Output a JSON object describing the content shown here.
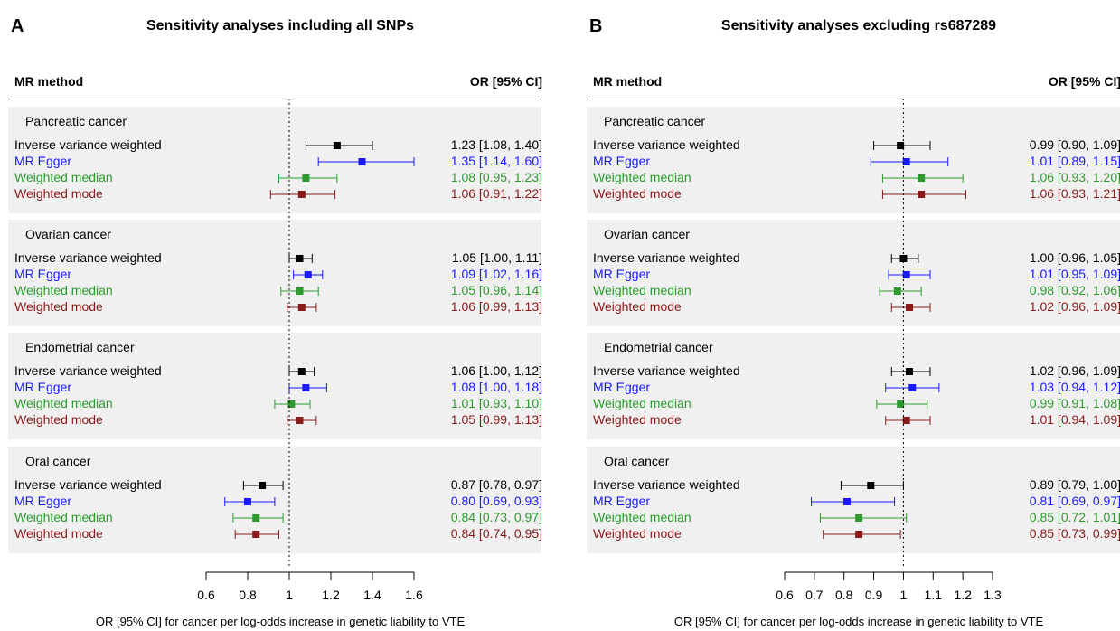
{
  "chart_data": [
    {
      "type": "forest",
      "panel_letter": "A",
      "title": "Sensitivity analyses including all SNPs",
      "header_method": "MR method",
      "header_or": "OR [95% CI]",
      "xlabel": "OR [95% CI] for cancer per log-odds increase in genetic liability to VTE",
      "xticks": [
        "0.6",
        "0.8",
        "1",
        "1.2",
        "1.4",
        "1.6"
      ],
      "xtick_values": [
        0.6,
        0.8,
        1.0,
        1.2,
        1.4,
        1.6
      ],
      "xlim": [
        0.6,
        1.6
      ],
      "reference_line": 1.0,
      "groups": [
        {
          "name": "Pancreatic cancer",
          "rows": [
            {
              "method": "Inverse variance weighted",
              "or": 1.23,
              "lo": 1.08,
              "hi": 1.4,
              "label": "1.23 [1.08, 1.40]"
            },
            {
              "method": "MR Egger",
              "or": 1.35,
              "lo": 1.14,
              "hi": 1.6,
              "label": "1.35 [1.14, 1.60]"
            },
            {
              "method": "Weighted median",
              "or": 1.08,
              "lo": 0.95,
              "hi": 1.23,
              "label": "1.08 [0.95, 1.23]"
            },
            {
              "method": "Weighted mode",
              "or": 1.06,
              "lo": 0.91,
              "hi": 1.22,
              "label": "1.06 [0.91, 1.22]"
            }
          ]
        },
        {
          "name": "Ovarian cancer",
          "rows": [
            {
              "method": "Inverse variance weighted",
              "or": 1.05,
              "lo": 1.0,
              "hi": 1.11,
              "label": "1.05 [1.00, 1.11]"
            },
            {
              "method": "MR Egger",
              "or": 1.09,
              "lo": 1.02,
              "hi": 1.16,
              "label": "1.09 [1.02, 1.16]"
            },
            {
              "method": "Weighted median",
              "or": 1.05,
              "lo": 0.96,
              "hi": 1.14,
              "label": "1.05 [0.96, 1.14]"
            },
            {
              "method": "Weighted mode",
              "or": 1.06,
              "lo": 0.99,
              "hi": 1.13,
              "label": "1.06 [0.99, 1.13]"
            }
          ]
        },
        {
          "name": "Endometrial cancer",
          "rows": [
            {
              "method": "Inverse variance weighted",
              "or": 1.06,
              "lo": 1.0,
              "hi": 1.12,
              "label": "1.06 [1.00, 1.12]"
            },
            {
              "method": "MR Egger",
              "or": 1.08,
              "lo": 1.0,
              "hi": 1.18,
              "label": "1.08 [1.00, 1.18]"
            },
            {
              "method": "Weighted median",
              "or": 1.01,
              "lo": 0.93,
              "hi": 1.1,
              "label": "1.01 [0.93, 1.10]"
            },
            {
              "method": "Weighted mode",
              "or": 1.05,
              "lo": 0.99,
              "hi": 1.13,
              "label": "1.05 [0.99, 1.13]"
            }
          ]
        },
        {
          "name": "Oral cancer",
          "rows": [
            {
              "method": "Inverse variance weighted",
              "or": 0.87,
              "lo": 0.78,
              "hi": 0.97,
              "label": "0.87 [0.78, 0.97]"
            },
            {
              "method": "MR Egger",
              "or": 0.8,
              "lo": 0.69,
              "hi": 0.93,
              "label": "0.80 [0.69, 0.93]"
            },
            {
              "method": "Weighted median",
              "or": 0.84,
              "lo": 0.73,
              "hi": 0.97,
              "label": "0.84 [0.73, 0.97]"
            },
            {
              "method": "Weighted mode",
              "or": 0.84,
              "lo": 0.74,
              "hi": 0.95,
              "label": "0.84 [0.74, 0.95]"
            }
          ]
        }
      ]
    },
    {
      "type": "forest",
      "panel_letter": "B",
      "title": "Sensitivity analyses excluding rs687289",
      "header_method": "MR method",
      "header_or": "OR [95% CI]",
      "xlabel": "OR [95% CI] for cancer per log-odds increase in genetic liability to VTE",
      "xticks": [
        "0.6",
        "0.7",
        "0.8",
        "0.9",
        "1",
        "1.1",
        "1.2",
        "1.3"
      ],
      "xtick_values": [
        0.6,
        0.7,
        0.8,
        0.9,
        1.0,
        1.1,
        1.2,
        1.3
      ],
      "xlim": [
        0.6,
        1.3
      ],
      "reference_line": 1.0,
      "groups": [
        {
          "name": "Pancreatic cancer",
          "rows": [
            {
              "method": "Inverse variance weighted",
              "or": 0.99,
              "lo": 0.9,
              "hi": 1.09,
              "label": "0.99 [0.90, 1.09]"
            },
            {
              "method": "MR Egger",
              "or": 1.01,
              "lo": 0.89,
              "hi": 1.15,
              "label": "1.01 [0.89, 1.15]"
            },
            {
              "method": "Weighted median",
              "or": 1.06,
              "lo": 0.93,
              "hi": 1.2,
              "label": "1.06 [0.93, 1.20]"
            },
            {
              "method": "Weighted mode",
              "or": 1.06,
              "lo": 0.93,
              "hi": 1.21,
              "label": "1.06 [0.93, 1.21]"
            }
          ]
        },
        {
          "name": "Ovarian cancer",
          "rows": [
            {
              "method": "Inverse variance weighted",
              "or": 1.0,
              "lo": 0.96,
              "hi": 1.05,
              "label": "1.00 [0.96, 1.05]"
            },
            {
              "method": "MR Egger",
              "or": 1.01,
              "lo": 0.95,
              "hi": 1.09,
              "label": "1.01 [0.95, 1.09]"
            },
            {
              "method": "Weighted median",
              "or": 0.98,
              "lo": 0.92,
              "hi": 1.06,
              "label": "0.98 [0.92, 1.06]"
            },
            {
              "method": "Weighted mode",
              "or": 1.02,
              "lo": 0.96,
              "hi": 1.09,
              "label": "1.02 [0.96, 1.09]"
            }
          ]
        },
        {
          "name": "Endometrial cancer",
          "rows": [
            {
              "method": "Inverse variance weighted",
              "or": 1.02,
              "lo": 0.96,
              "hi": 1.09,
              "label": "1.02 [0.96, 1.09]"
            },
            {
              "method": "MR Egger",
              "or": 1.03,
              "lo": 0.94,
              "hi": 1.12,
              "label": "1.03 [0.94, 1.12]"
            },
            {
              "method": "Weighted median",
              "or": 0.99,
              "lo": 0.91,
              "hi": 1.08,
              "label": "0.99 [0.91, 1.08]"
            },
            {
              "method": "Weighted mode",
              "or": 1.01,
              "lo": 0.94,
              "hi": 1.09,
              "label": "1.01 [0.94, 1.09]"
            }
          ]
        },
        {
          "name": "Oral cancer",
          "rows": [
            {
              "method": "Inverse variance weighted",
              "or": 0.89,
              "lo": 0.79,
              "hi": 1.0,
              "label": "0.89 [0.79, 1.00]"
            },
            {
              "method": "MR Egger",
              "or": 0.81,
              "lo": 0.69,
              "hi": 0.97,
              "label": "0.81 [0.69, 0.97]"
            },
            {
              "method": "Weighted median",
              "or": 0.85,
              "lo": 0.72,
              "hi": 1.01,
              "label": "0.85 [0.72, 1.01]"
            },
            {
              "method": "Weighted mode",
              "or": 0.85,
              "lo": 0.73,
              "hi": 0.99,
              "label": "0.85 [0.73, 0.99]"
            }
          ]
        }
      ]
    }
  ],
  "method_colors": {
    "Inverse variance weighted": "#000000",
    "MR Egger": "#1a1aff",
    "Weighted median": "#2e9a2e",
    "Weighted mode": "#8b1a1a"
  }
}
